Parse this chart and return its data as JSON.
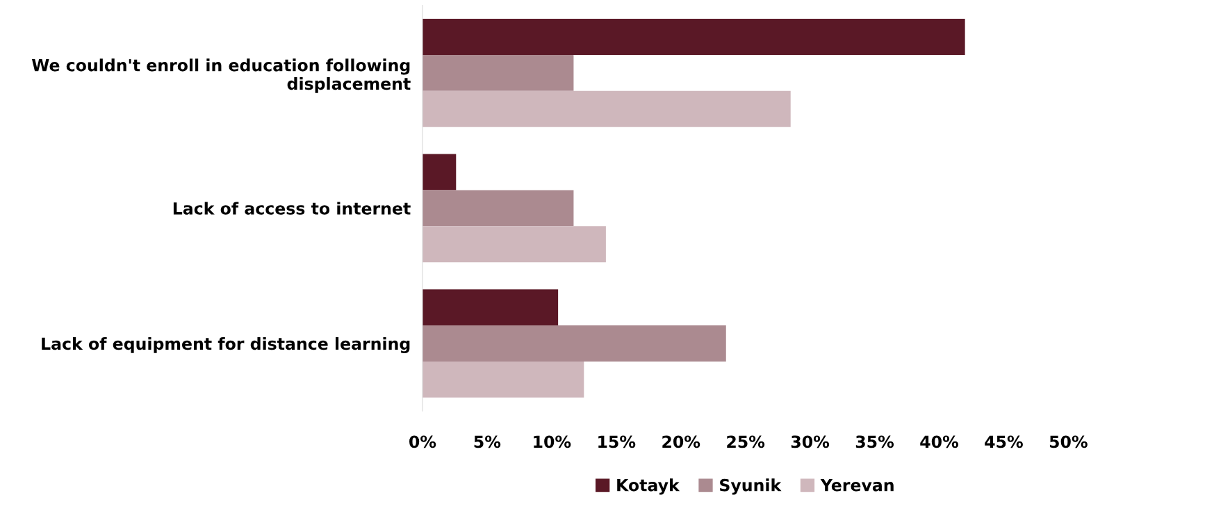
{
  "chart_data": {
    "type": "bar",
    "orientation": "horizontal",
    "categories": [
      "We couldn't enroll in education following displacement",
      "Lack of access to internet",
      "Lack of equipment for distance learning"
    ],
    "series": [
      {
        "name": "Kotayk",
        "color": "#5a1826",
        "values": [
          42,
          2.6,
          10.5
        ]
      },
      {
        "name": "Syunik",
        "color": "#ab8a90",
        "values": [
          11.7,
          11.7,
          23.5
        ]
      },
      {
        "name": "Yerevan",
        "color": "#cfb7bc",
        "values": [
          28.5,
          14.2,
          12.5
        ]
      }
    ],
    "xlim": [
      0,
      50
    ],
    "xticks": [
      {
        "value": 0,
        "label": "0%"
      },
      {
        "value": 5,
        "label": "5%"
      },
      {
        "value": 10,
        "label": "10%"
      },
      {
        "value": 15,
        "label": "15%"
      },
      {
        "value": 20,
        "label": "20%"
      },
      {
        "value": 25,
        "label": "25%"
      },
      {
        "value": 30,
        "label": "30%"
      },
      {
        "value": 35,
        "label": "35%"
      },
      {
        "value": 40,
        "label": "40%"
      },
      {
        "value": 45,
        "label": "45%"
      },
      {
        "value": 50,
        "label": "50%"
      }
    ],
    "grid": false,
    "legend": "bottom"
  }
}
